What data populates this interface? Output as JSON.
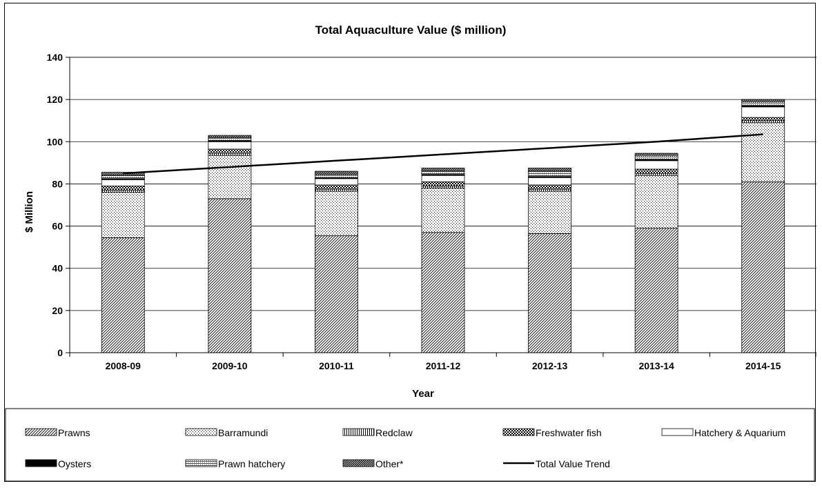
{
  "chart_data": {
    "type": "bar",
    "stacked": true,
    "title": "Total Aquaculture Value ($ million)",
    "xlabel": "Year",
    "ylabel": "$ Million",
    "ylim": [
      0,
      140
    ],
    "yticks": [
      0,
      20,
      40,
      60,
      80,
      100,
      120,
      140
    ],
    "grid": true,
    "legend_position": "bottom",
    "categories": [
      "2008-09",
      "2009-10",
      "2010-11",
      "2011-12",
      "2012-13",
      "2013-14",
      "2014-15"
    ],
    "series": [
      {
        "name": "Prawns",
        "pattern": "diagonal",
        "values": [
          54.5,
          73,
          55.5,
          57,
          56.5,
          59,
          81
        ]
      },
      {
        "name": "Barramundi",
        "pattern": "dots",
        "values": [
          21.5,
          20.5,
          21,
          21,
          20,
          25,
          28
        ]
      },
      {
        "name": "Redclaw",
        "pattern": "vertical",
        "values": [
          1,
          1,
          1,
          1,
          1,
          1,
          1
        ]
      },
      {
        "name": "Freshwater fish",
        "pattern": "checker",
        "values": [
          2,
          2,
          2,
          2,
          2,
          2,
          1.5
        ]
      },
      {
        "name": "Hatchery & Aquarium",
        "pattern": "white",
        "values": [
          3,
          3.5,
          3,
          3,
          3.5,
          4,
          5
        ]
      },
      {
        "name": "Oysters",
        "pattern": "black",
        "values": [
          0.5,
          0.5,
          0.5,
          0.5,
          0.5,
          0.5,
          0.5
        ]
      },
      {
        "name": "Prawn hatchery",
        "pattern": "horizontal",
        "values": [
          1.5,
          1.5,
          1.5,
          1.5,
          2.5,
          2,
          2
        ]
      },
      {
        "name": "Other*",
        "pattern": "crosshatch",
        "values": [
          1.5,
          1,
          1.5,
          1.5,
          1.5,
          1,
          1
        ]
      }
    ],
    "trend": {
      "name": "Total Value Trend",
      "values": [
        85,
        88,
        91,
        94,
        97,
        100,
        103.5
      ]
    }
  }
}
